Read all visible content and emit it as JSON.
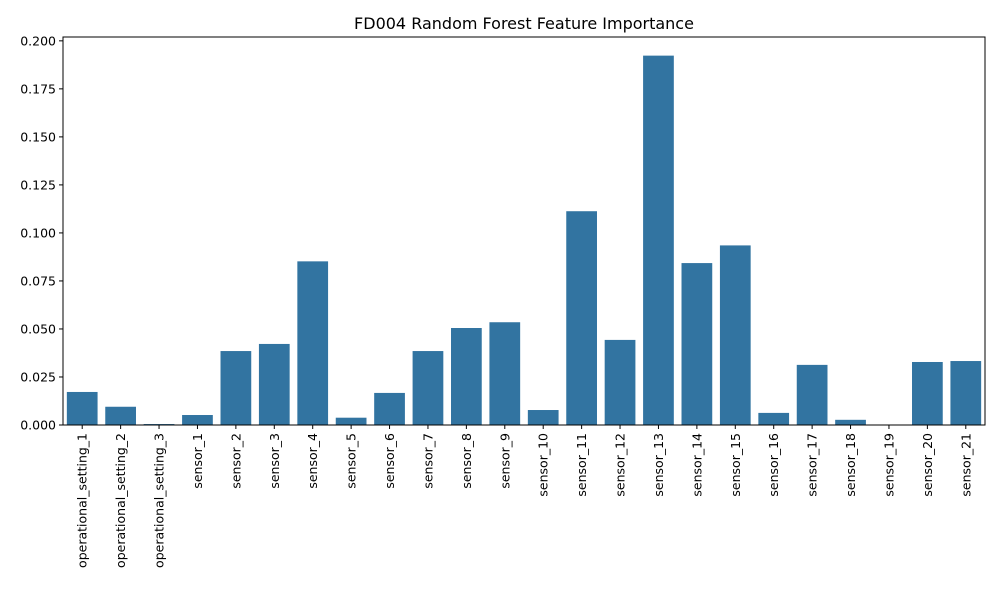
{
  "chart_data": {
    "type": "bar",
    "title": "FD004 Random Forest Feature Importance",
    "xlabel": "",
    "ylabel": "",
    "ylim": [
      0,
      0.202
    ],
    "yticks": [
      "0.000",
      "0.025",
      "0.050",
      "0.075",
      "0.100",
      "0.125",
      "0.150",
      "0.175",
      "0.200"
    ],
    "grid": false,
    "bar_color": "#3274a1",
    "categories": [
      "operational_setting_1",
      "operational_setting_2",
      "operational_setting_3",
      "sensor_1",
      "sensor_2",
      "sensor_3",
      "sensor_4",
      "sensor_5",
      "sensor_6",
      "sensor_7",
      "sensor_8",
      "sensor_9",
      "sensor_10",
      "sensor_11",
      "sensor_12",
      "sensor_13",
      "sensor_14",
      "sensor_15",
      "sensor_16",
      "sensor_17",
      "sensor_18",
      "sensor_19",
      "sensor_20",
      "sensor_21"
    ],
    "values": [
      0.0172,
      0.0095,
      0.0005,
      0.0052,
      0.0385,
      0.0422,
      0.0852,
      0.0038,
      0.0167,
      0.0385,
      0.0505,
      0.0535,
      0.0078,
      0.1113,
      0.0443,
      0.1923,
      0.0843,
      0.0935,
      0.0063,
      0.0313,
      0.0027,
      0.0,
      0.0328,
      0.0333
    ]
  }
}
